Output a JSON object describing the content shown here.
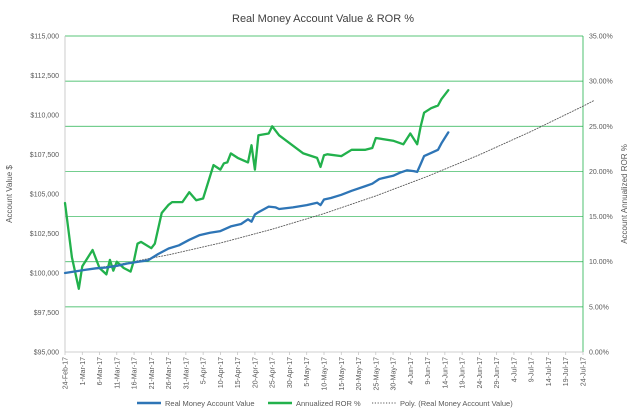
{
  "chart_data": {
    "type": "line",
    "title": "Real Money Account Value & ROR %",
    "ylabel": "Account Value $",
    "y2label": "Account Annualized ROR %",
    "ylim": [
      95000,
      115000
    ],
    "y2lim": [
      0,
      35
    ],
    "y_ticks": [
      "$95,000",
      "$97,500",
      "$100,000",
      "$102,500",
      "$105,000",
      "$107,500",
      "$110,000",
      "$112,500",
      "$115,000"
    ],
    "y2_ticks": [
      "0.00%",
      "5.00%",
      "10.00%",
      "15.00%",
      "20.00%",
      "25.00%",
      "30.00%",
      "35.00%"
    ],
    "x_ticks": [
      "24-Feb-17",
      "1-Mar-17",
      "6-Mar-17",
      "11-Mar-17",
      "16-Mar-17",
      "21-Mar-17",
      "26-Mar-17",
      "31-Mar-17",
      "5-Apr-17",
      "10-Apr-17",
      "15-Apr-17",
      "20-Apr-17",
      "25-Apr-17",
      "30-Apr-17",
      "5-May-17",
      "10-May-17",
      "15-May-17",
      "20-May-17",
      "25-May-17",
      "30-May-17",
      "4-Jun-17",
      "9-Jun-17",
      "14-Jun-17",
      "19-Jun-17",
      "24-Jun-17",
      "29-Jun-17",
      "4-Jul-17",
      "9-Jul-17",
      "14-Jul-17",
      "19-Jul-17",
      "24-Jul-17"
    ],
    "legend_position": "bottom",
    "grid": "horizontal lines on secondary axis",
    "series": [
      {
        "name": "Real Money Account Value",
        "axis": "left",
        "color": "#2e75b6",
        "x": [
          "2017-02-24",
          "2017-02-27",
          "2017-03-02",
          "2017-03-05",
          "2017-03-08",
          "2017-03-11",
          "2017-03-14",
          "2017-03-17",
          "2017-03-20",
          "2017-03-23",
          "2017-03-26",
          "2017-03-29",
          "2017-04-01",
          "2017-04-04",
          "2017-04-07",
          "2017-04-10",
          "2017-04-13",
          "2017-04-16",
          "2017-04-18",
          "2017-04-19",
          "2017-04-20",
          "2017-04-21",
          "2017-04-24",
          "2017-04-26",
          "2017-04-27",
          "2017-05-01",
          "2017-05-05",
          "2017-05-08",
          "2017-05-09",
          "2017-05-10",
          "2017-05-12",
          "2017-05-15",
          "2017-05-18",
          "2017-05-22",
          "2017-05-24",
          "2017-05-26",
          "2017-05-30",
          "2017-06-01",
          "2017-06-03",
          "2017-06-05",
          "2017-06-06",
          "2017-06-07",
          "2017-06-08",
          "2017-06-10",
          "2017-06-12",
          "2017-06-13",
          "2017-06-15"
        ],
        "values": [
          100000,
          100100,
          100200,
          100300,
          100350,
          100450,
          100600,
          100700,
          100800,
          101200,
          101550,
          101750,
          102100,
          102400,
          102550,
          102650,
          102950,
          103100,
          103400,
          103250,
          103700,
          103850,
          104200,
          104150,
          104050,
          104150,
          104300,
          104450,
          104300,
          104650,
          104750,
          104950,
          105200,
          105500,
          105650,
          105950,
          106150,
          106350,
          106500,
          106450,
          106400,
          106900,
          107400,
          107600,
          107800,
          108200,
          108900
        ]
      },
      {
        "name": "Annualized ROR %",
        "axis": "right",
        "color": "#22b14c",
        "x": [
          "2017-02-24",
          "2017-02-26",
          "2017-02-28",
          "2017-03-01",
          "2017-03-04",
          "2017-03-06",
          "2017-03-08",
          "2017-03-09",
          "2017-03-10",
          "2017-03-11",
          "2017-03-13",
          "2017-03-15",
          "2017-03-16",
          "2017-03-17",
          "2017-03-18",
          "2017-03-21",
          "2017-03-22",
          "2017-03-24",
          "2017-03-26",
          "2017-03-27",
          "2017-03-30",
          "2017-04-01",
          "2017-04-03",
          "2017-04-05",
          "2017-04-08",
          "2017-04-10",
          "2017-04-11",
          "2017-04-12",
          "2017-04-13",
          "2017-04-15",
          "2017-04-18",
          "2017-04-19",
          "2017-04-20",
          "2017-04-21",
          "2017-04-24",
          "2017-04-25",
          "2017-04-27",
          "2017-05-04",
          "2017-05-08",
          "2017-05-09",
          "2017-05-10",
          "2017-05-11",
          "2017-05-15",
          "2017-05-18",
          "2017-05-22",
          "2017-05-24",
          "2017-05-25",
          "2017-05-30",
          "2017-06-02",
          "2017-06-04",
          "2017-06-06",
          "2017-06-07",
          "2017-06-08",
          "2017-06-10",
          "2017-06-12",
          "2017-06-13",
          "2017-06-15"
        ],
        "values": [
          16.5,
          10.5,
          7.0,
          9.5,
          11.3,
          9.3,
          8.6,
          10.2,
          9.0,
          10.0,
          9.3,
          8.9,
          10.2,
          12.0,
          12.2,
          11.5,
          12.0,
          15.4,
          16.3,
          16.6,
          16.6,
          17.7,
          16.8,
          17.0,
          20.7,
          20.2,
          20.9,
          21.0,
          22.0,
          21.5,
          21.0,
          22.9,
          20.2,
          24.0,
          24.2,
          25.0,
          24.0,
          22.0,
          21.5,
          20.5,
          21.8,
          21.9,
          21.7,
          22.4,
          22.4,
          22.6,
          23.7,
          23.4,
          23.0,
          24.2,
          23.0,
          25.0,
          26.5,
          27.0,
          27.3,
          28.0,
          29.0
        ]
      },
      {
        "name": "Poly. (Real Money Account Value)",
        "axis": "left",
        "style": "dotted",
        "color": "#595959",
        "x": [
          "2017-02-24",
          "2017-03-11",
          "2017-03-26",
          "2017-04-10",
          "2017-04-25",
          "2017-05-10",
          "2017-05-25",
          "2017-06-09",
          "2017-06-24",
          "2017-07-09",
          "2017-07-24",
          "2017-07-27"
        ],
        "values": [
          100000,
          100520,
          101150,
          101900,
          102770,
          103760,
          104880,
          106120,
          107480,
          108960,
          110560,
          110900
        ]
      }
    ]
  }
}
